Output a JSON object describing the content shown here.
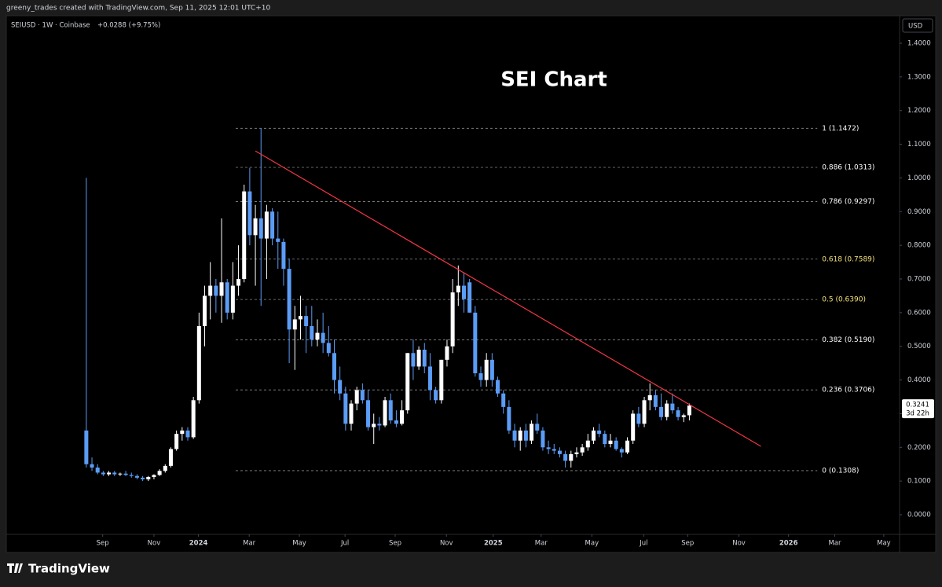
{
  "header": {
    "credit": "greeny_trades created with TradingView.com, Sep 11, 2025 12:01 UTC+10",
    "brand": "TradingView"
  },
  "chart_data": {
    "type": "candlestick",
    "title": "SEI Chart",
    "symbol_line": "SEIUSD · 1W · Coinbase",
    "change": "+0.0288 (+9.75%)",
    "currency": "USD",
    "countdown": "3d 22h",
    "up_color": "#ffffff",
    "down_color": "#5b9cf6",
    "x": [
      0,
      1,
      2,
      3,
      4,
      5,
      6,
      7,
      8,
      9,
      10,
      11,
      12,
      13,
      14,
      15,
      16,
      17,
      18,
      19,
      20,
      21,
      22,
      23,
      24,
      25,
      26,
      27,
      28,
      29,
      30,
      31,
      32,
      33,
      34,
      35,
      36,
      37,
      38,
      39,
      40,
      41,
      42,
      43,
      44,
      45,
      46,
      47,
      48,
      49,
      50,
      51,
      52,
      53,
      54,
      55,
      56,
      57,
      58,
      59,
      60,
      61,
      62,
      63,
      64,
      65,
      66,
      67,
      68,
      69,
      70,
      71,
      72,
      73,
      74,
      75,
      76,
      77,
      78,
      79,
      80,
      81,
      82,
      83,
      84,
      85,
      86,
      87,
      88,
      89,
      90,
      91,
      92,
      93,
      94,
      95,
      96,
      97,
      98,
      99,
      100,
      101,
      102,
      103,
      104,
      105,
      106,
      107
    ],
    "open": [
      0.25,
      0.15,
      0.14,
      0.125,
      0.12,
      0.125,
      0.12,
      0.122,
      0.118,
      0.115,
      0.11,
      0.105,
      0.112,
      0.118,
      0.13,
      0.145,
      0.195,
      0.24,
      0.25,
      0.23,
      0.34,
      0.56,
      0.65,
      0.68,
      0.65,
      0.69,
      0.6,
      0.68,
      0.7,
      0.96,
      0.83,
      0.88,
      0.82,
      0.9,
      0.82,
      0.81,
      0.73,
      0.55,
      0.58,
      0.59,
      0.56,
      0.52,
      0.54,
      0.51,
      0.48,
      0.4,
      0.36,
      0.27,
      0.33,
      0.37,
      0.34,
      0.26,
      0.27,
      0.265,
      0.34,
      0.28,
      0.27,
      0.31,
      0.48,
      0.44,
      0.49,
      0.44,
      0.37,
      0.34,
      0.46,
      0.5,
      0.66,
      0.68,
      0.69,
      0.6,
      0.42,
      0.4,
      0.46,
      0.4,
      0.36,
      0.32,
      0.25,
      0.22,
      0.25,
      0.22,
      0.27,
      0.25,
      0.2,
      0.195,
      0.19,
      0.18,
      0.16,
      0.18,
      0.185,
      0.2,
      0.22,
      0.25,
      0.24,
      0.21,
      0.22,
      0.195,
      0.185,
      0.22,
      0.3,
      0.27,
      0.34,
      0.355,
      0.32,
      0.29,
      0.33,
      0.31,
      0.29,
      0.2953
    ],
    "high": [
      1.0,
      0.17,
      0.15,
      0.13,
      0.13,
      0.13,
      0.125,
      0.13,
      0.125,
      0.12,
      0.115,
      0.115,
      0.12,
      0.135,
      0.15,
      0.2,
      0.25,
      0.26,
      0.26,
      0.35,
      0.6,
      0.68,
      0.75,
      0.7,
      0.88,
      0.7,
      0.75,
      0.8,
      0.98,
      1.03,
      0.92,
      1.1472,
      0.92,
      0.91,
      0.9,
      0.82,
      0.76,
      0.62,
      0.65,
      0.62,
      0.62,
      0.58,
      0.6,
      0.56,
      0.52,
      0.44,
      0.38,
      0.34,
      0.38,
      0.39,
      0.37,
      0.3,
      0.29,
      0.35,
      0.36,
      0.31,
      0.34,
      0.48,
      0.52,
      0.5,
      0.51,
      0.48,
      0.38,
      0.46,
      0.52,
      0.7,
      0.74,
      0.72,
      0.7,
      0.62,
      0.44,
      0.48,
      0.48,
      0.41,
      0.37,
      0.34,
      0.27,
      0.26,
      0.27,
      0.28,
      0.3,
      0.26,
      0.22,
      0.21,
      0.2,
      0.19,
      0.19,
      0.2,
      0.21,
      0.24,
      0.26,
      0.27,
      0.25,
      0.24,
      0.23,
      0.2,
      0.23,
      0.31,
      0.32,
      0.35,
      0.39,
      0.37,
      0.36,
      0.34,
      0.36,
      0.32,
      0.3,
      0.33
    ],
    "low": [
      0.14,
      0.13,
      0.12,
      0.115,
      0.115,
      0.115,
      0.115,
      0.115,
      0.11,
      0.105,
      0.1,
      0.1,
      0.105,
      0.115,
      0.125,
      0.14,
      0.19,
      0.22,
      0.22,
      0.225,
      0.33,
      0.5,
      0.58,
      0.6,
      0.57,
      0.58,
      0.58,
      0.65,
      0.69,
      0.8,
      0.68,
      0.62,
      0.7,
      0.8,
      0.73,
      0.68,
      0.45,
      0.43,
      0.52,
      0.48,
      0.5,
      0.5,
      0.48,
      0.47,
      0.36,
      0.34,
      0.25,
      0.25,
      0.31,
      0.33,
      0.25,
      0.21,
      0.25,
      0.26,
      0.27,
      0.26,
      0.265,
      0.3,
      0.4,
      0.43,
      0.42,
      0.34,
      0.33,
      0.33,
      0.44,
      0.48,
      0.62,
      0.6,
      0.6,
      0.41,
      0.38,
      0.38,
      0.38,
      0.35,
      0.3,
      0.24,
      0.2,
      0.19,
      0.2,
      0.21,
      0.24,
      0.19,
      0.18,
      0.18,
      0.17,
      0.14,
      0.14,
      0.17,
      0.175,
      0.19,
      0.21,
      0.23,
      0.2,
      0.2,
      0.19,
      0.17,
      0.18,
      0.21,
      0.26,
      0.26,
      0.31,
      0.31,
      0.28,
      0.28,
      0.3,
      0.28,
      0.275,
      0.28
    ],
    "close": [
      0.15,
      0.14,
      0.125,
      0.12,
      0.125,
      0.12,
      0.122,
      0.118,
      0.115,
      0.11,
      0.105,
      0.112,
      0.118,
      0.13,
      0.145,
      0.195,
      0.24,
      0.25,
      0.23,
      0.34,
      0.56,
      0.65,
      0.68,
      0.65,
      0.69,
      0.6,
      0.68,
      0.7,
      0.96,
      0.83,
      0.88,
      0.82,
      0.9,
      0.82,
      0.81,
      0.73,
      0.55,
      0.58,
      0.59,
      0.56,
      0.52,
      0.54,
      0.51,
      0.48,
      0.4,
      0.36,
      0.27,
      0.33,
      0.37,
      0.34,
      0.26,
      0.27,
      0.265,
      0.34,
      0.28,
      0.27,
      0.31,
      0.48,
      0.44,
      0.49,
      0.44,
      0.37,
      0.34,
      0.46,
      0.5,
      0.66,
      0.68,
      0.64,
      0.6,
      0.42,
      0.4,
      0.46,
      0.4,
      0.36,
      0.32,
      0.25,
      0.22,
      0.25,
      0.22,
      0.27,
      0.25,
      0.2,
      0.195,
      0.19,
      0.18,
      0.16,
      0.18,
      0.185,
      0.2,
      0.22,
      0.25,
      0.24,
      0.21,
      0.22,
      0.195,
      0.185,
      0.22,
      0.3,
      0.27,
      0.34,
      0.355,
      0.32,
      0.29,
      0.33,
      0.31,
      0.29,
      0.2953,
      0.3241
    ],
    "xlim": [
      -14.2,
      144.3
    ],
    "xticks": [
      {
        "value": 2.9,
        "label": "Sep"
      },
      {
        "value": 12.0,
        "label": "Nov"
      },
      {
        "value": 19.9,
        "label": "2024"
      },
      {
        "value": 28.9,
        "label": "Mar"
      },
      {
        "value": 37.8,
        "label": "May"
      },
      {
        "value": 45.9,
        "label": "Jul"
      },
      {
        "value": 54.8,
        "label": "Sep"
      },
      {
        "value": 63.9,
        "label": "Nov"
      },
      {
        "value": 72.2,
        "label": "2025"
      },
      {
        "value": 80.7,
        "label": "Mar"
      },
      {
        "value": 89.7,
        "label": "May"
      },
      {
        "value": 98.9,
        "label": "Jul"
      },
      {
        "value": 106.7,
        "label": "Sep"
      },
      {
        "value": 115.8,
        "label": "Nov"
      },
      {
        "value": 124.6,
        "label": "2026"
      },
      {
        "value": 132.8,
        "label": "Mar"
      },
      {
        "value": 141.5,
        "label": "May"
      }
    ],
    "ylim": [
      -0.0583,
      1.4233
    ],
    "yticks": [
      {
        "value": 0,
        "label": "0.0000"
      },
      {
        "value": 0.1,
        "label": "0.1000"
      },
      {
        "value": 0.2,
        "label": "0.2000"
      },
      {
        "value": 0.3,
        "label": "0.3000"
      },
      {
        "value": 0.4,
        "label": "0.4000"
      },
      {
        "value": 0.5,
        "label": "0.5000"
      },
      {
        "value": 0.6,
        "label": "0.6000"
      },
      {
        "value": 0.7,
        "label": "0.7000"
      },
      {
        "value": 0.8,
        "label": "0.8000"
      },
      {
        "value": 0.9,
        "label": "0.9000"
      },
      {
        "value": 1.0,
        "label": "1.0000"
      },
      {
        "value": 1.1,
        "label": "1.1000"
      },
      {
        "value": 1.2,
        "label": "1.2000"
      },
      {
        "value": 1.3,
        "label": "1.3000"
      },
      {
        "value": 1.4,
        "label": "1.4000"
      }
    ],
    "fib_x": [
      26.5,
      129.7
    ],
    "fib_levels": [
      {
        "value": 1.1472,
        "label": "1 (1.1472)",
        "color": "#ffffff"
      },
      {
        "value": 1.0313,
        "label": "0.886 (1.0313)",
        "color": "#ffffff"
      },
      {
        "value": 0.9297,
        "label": "0.786 (0.9297)",
        "color": "#ffffff"
      },
      {
        "value": 0.7589,
        "label": "0.618 (0.7589)",
        "color": "#f5e37a"
      },
      {
        "value": 0.639,
        "label": "0.5 (0.6390)",
        "color": "#f5e37a"
      },
      {
        "value": 0.519,
        "label": "0.382 (0.5190)",
        "color": "#ffffff"
      },
      {
        "value": 0.3706,
        "label": "0.236 (0.3706)",
        "color": "#ffffff"
      },
      {
        "value": 0.1308,
        "label": "0 (0.1308)",
        "color": "#ffffff"
      }
    ],
    "trendline": {
      "x": [
        30,
        119.7
      ],
      "y": [
        1.08,
        0.203
      ],
      "color": "#f23645"
    }
  }
}
